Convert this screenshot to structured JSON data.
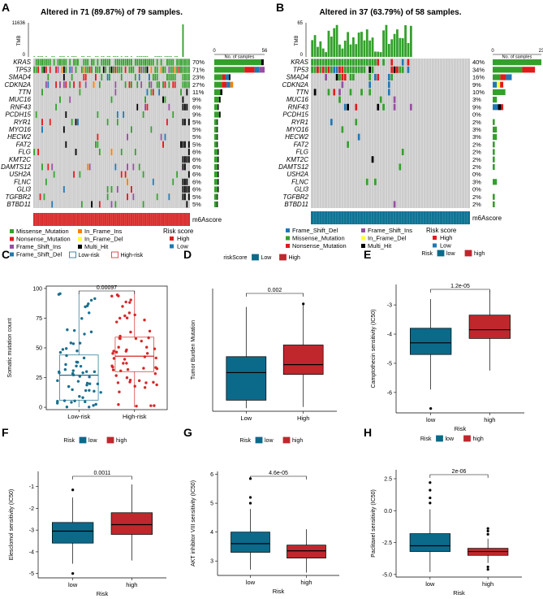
{
  "panels": {
    "A": {
      "letter": "A",
      "title": "Altered in 71 (89.87%) of 79 samples.",
      "tmb_label": "TMB",
      "tmb_max": "11636",
      "tmb_min": "0",
      "samples_label": "No. of samples",
      "samples_ticks": [
        "0",
        "56"
      ],
      "genes": [
        "KRAS",
        "TP53",
        "SMAD4",
        "CDKN2A",
        "TTN",
        "MUC16",
        "RNF43",
        "PCDH15",
        "RYR1",
        "MYO16",
        "HECW2",
        "FAT2",
        "FLG",
        "KMT2C",
        "DAMTS12",
        "USH2A",
        "FLNC",
        "GLI3",
        "TGFBR2",
        "BTBD11"
      ],
      "percents": [
        "70%",
        "71%",
        "23%",
        "27%",
        "11%",
        "9%",
        "6%",
        "9%",
        "5%",
        "5%",
        "5%",
        "5%",
        "6%",
        "6%",
        "6%",
        "6%",
        "6%",
        "6%",
        "5%",
        "5%"
      ],
      "counts": [
        55,
        56,
        18,
        21,
        9,
        7,
        5,
        7,
        4,
        4,
        4,
        4,
        5,
        5,
        5,
        5,
        5,
        5,
        4,
        4
      ],
      "track_label": "m6Ascore",
      "legend": [
        {
          "label": "Missense_Mutation",
          "color": "#33a02c"
        },
        {
          "label": "Nonsense_Mutation",
          "color": "#e31a1c"
        },
        {
          "label": "Frame_Shift_Ins",
          "color": "#984ea3"
        },
        {
          "label": "Frame_Shift_Del",
          "color": "#1f78b4"
        },
        {
          "label": "In_Frame_Ins",
          "color": "#ff7f00"
        },
        {
          "label": "In_Frame_Del",
          "color": "#ffff33"
        },
        {
          "label": "Multi_Hit",
          "color": "#000000"
        }
      ],
      "risk_title": "Risk score",
      "risk_items": [
        {
          "label": "High",
          "color": "#e31a1c"
        },
        {
          "label": "Low",
          "color": "#1f78b4"
        }
      ]
    },
    "B": {
      "letter": "B",
      "title": "Altered in 37 (63.79%) of 58 samples.",
      "tmb_label": "TMB",
      "tmb_max": "65",
      "tmb_min": "0",
      "samples_label": "No. of samples",
      "samples_ticks": [
        "0",
        "23"
      ],
      "genes": [
        "KRAS",
        "TP53",
        "SMAD4",
        "CDKN2A",
        "TTN",
        "MUC16",
        "RNF43",
        "PCDH15",
        "RYR1",
        "MYO16",
        "HECW2",
        "FAT2",
        "FLG",
        "KMT2C",
        "DAMTS12",
        "USH2A",
        "FLNC",
        "GLI3",
        "TGFBR2",
        "BTBD11"
      ],
      "percents": [
        "40%",
        "34%",
        "16%",
        "9%",
        "10%",
        "3%",
        "9%",
        "0%",
        "2%",
        "3%",
        "3%",
        "2%",
        "2%",
        "2%",
        "2%",
        "0%",
        "3%",
        "0%",
        "2%",
        "2%"
      ],
      "counts": [
        23,
        20,
        9,
        5,
        6,
        2,
        5,
        0,
        1,
        2,
        2,
        1,
        1,
        1,
        1,
        0,
        2,
        0,
        1,
        1
      ],
      "track_label": "m6Ascore",
      "legend": [
        {
          "label": "Frame_Shift_Del",
          "color": "#1f78b4"
        },
        {
          "label": "Missense_Mutation",
          "color": "#33a02c"
        },
        {
          "label": "Nonsense_Mutation",
          "color": "#e31a1c"
        },
        {
          "label": "Frame_Shift_Ins",
          "color": "#984ea3"
        },
        {
          "label": "In_Frame_Del",
          "color": "#ffff33"
        },
        {
          "label": "Multi_Hit",
          "color": "#000000"
        }
      ],
      "risk_title": "Risk score",
      "risk_items": [
        {
          "label": "High",
          "color": "#e31a1c"
        },
        {
          "label": "Low",
          "color": "#1f78b4"
        }
      ]
    }
  },
  "chart_data": [
    {
      "id": "C",
      "type": "box",
      "letter": "C",
      "legend_title": "",
      "legend_labels": [
        "Low-risk",
        "High-risk"
      ],
      "ylabel": "Somatic mutation count",
      "xlabel": "",
      "ylim": [
        -2,
        102
      ],
      "yticks": [
        "0",
        "25",
        "50",
        "75",
        "100"
      ],
      "ytick_values": [
        0,
        25,
        50,
        75,
        100
      ],
      "groups": [
        {
          "name": "Low-risk",
          "color": "#1a6f8f",
          "fill": "none",
          "stats": [
            0,
            6,
            27,
            44,
            96
          ],
          "outliers": []
        },
        {
          "name": "High-risk",
          "color": "#d62728",
          "fill": "none",
          "stats": [
            0,
            30,
            43,
            59,
            98
          ],
          "outliers": []
        }
      ],
      "pvalue": "0.00097",
      "jitter": true
    },
    {
      "id": "D",
      "type": "box",
      "letter": "D",
      "legend_title": "riskScore",
      "legend_labels": [
        "Low",
        "High"
      ],
      "ylabel": "Tumor Burden Mutation",
      "xlabel": "",
      "ylim": [
        -0.05,
        1.95
      ],
      "yticks": [],
      "ytick_values": [],
      "groups": [
        {
          "name": "Low",
          "color": "#0b6a8a",
          "fill": "#0b6a8a",
          "stats": [
            0.0,
            0.13,
            0.58,
            0.84,
            1.65
          ],
          "outliers": []
        },
        {
          "name": "High",
          "color": "#c0272d",
          "fill": "#c0272d",
          "stats": [
            0.02,
            0.55,
            0.71,
            1.03,
            1.7
          ],
          "outliers": [
            1.7
          ]
        }
      ],
      "pvalue": "0.002"
    },
    {
      "id": "E",
      "type": "box",
      "letter": "E",
      "legend_title": "Risk",
      "legend_labels": [
        "low",
        "high"
      ],
      "ylabel": "Camptothecin sensitivity (IC50)",
      "xlabel": "Risk",
      "ylim": [
        -6.7,
        -2.3
      ],
      "yticks": [
        "-6",
        "-5",
        "-4",
        "-3"
      ],
      "ytick_values": [
        -6,
        -5,
        -4,
        -3
      ],
      "groups": [
        {
          "name": "low",
          "color": "#0b6a8a",
          "fill": "#0b6a8a",
          "stats": [
            -5.9,
            -4.7,
            -4.3,
            -3.8,
            -2.8
          ],
          "outliers": [
            -6.55
          ]
        },
        {
          "name": "high",
          "color": "#c0272d",
          "fill": "#c0272d",
          "stats": [
            -5.25,
            -4.15,
            -3.85,
            -3.35,
            -2.5
          ],
          "outliers": []
        }
      ],
      "pvalue": "1.2e-05"
    },
    {
      "id": "F",
      "type": "box",
      "letter": "F",
      "legend_title": "Risk",
      "legend_labels": [
        "low",
        "high"
      ],
      "ylabel": "Elesclomol sensitivity (IC50)",
      "xlabel": "Risk",
      "ylim": [
        -5.2,
        -0.3
      ],
      "yticks": [
        "-5",
        "-4",
        "-3",
        "-2",
        "-1"
      ],
      "ytick_values": [
        -5,
        -4,
        -3,
        -2,
        -1
      ],
      "groups": [
        {
          "name": "low",
          "color": "#0b6a8a",
          "fill": "#0b6a8a",
          "stats": [
            -4.55,
            -3.6,
            -3.05,
            -2.65,
            -1.5
          ],
          "outliers": [
            -1.15,
            -5.0
          ]
        },
        {
          "name": "high",
          "color": "#c0272d",
          "fill": "#c0272d",
          "stats": [
            -4.4,
            -3.2,
            -2.75,
            -2.2,
            -0.9
          ],
          "outliers": []
        }
      ],
      "pvalue": "0.0011"
    },
    {
      "id": "G",
      "type": "box",
      "letter": "G",
      "legend_title": "Risk",
      "legend_labels": [
        "low",
        "high"
      ],
      "ylabel": "AKT inhibitor VIII sensitivity (IC50)",
      "xlabel": "Risk",
      "ylim": [
        2.5,
        6.1
      ],
      "yticks": [
        "3",
        "4",
        "5",
        "6"
      ],
      "ytick_values": [
        3,
        4,
        5,
        6
      ],
      "groups": [
        {
          "name": "low",
          "color": "#0b6a8a",
          "fill": "#0b6a8a",
          "stats": [
            2.7,
            3.3,
            3.6,
            4.0,
            4.8
          ],
          "outliers": [
            5.0,
            5.2,
            5.85
          ]
        },
        {
          "name": "high",
          "color": "#c0272d",
          "fill": "#c0272d",
          "stats": [
            2.6,
            3.1,
            3.35,
            3.55,
            4.1
          ],
          "outliers": []
        }
      ],
      "pvalue": "4.6e-05"
    },
    {
      "id": "H",
      "type": "box",
      "letter": "H",
      "legend_title": "Risk",
      "legend_labels": [
        "low",
        "high"
      ],
      "ylabel": "Paclitaxel sensitivity (IC50)",
      "xlabel": "Risk",
      "ylim": [
        -5.2,
        3.2
      ],
      "yticks": [
        "-5.0",
        "-2.5",
        "0.0",
        "2.5"
      ],
      "ytick_values": [
        -5.0,
        -2.5,
        0.0,
        2.5
      ],
      "groups": [
        {
          "name": "low",
          "color": "#0b6a8a",
          "fill": "#0b6a8a",
          "stats": [
            -4.8,
            -3.2,
            -2.75,
            -1.8,
            0.1
          ],
          "outliers": [
            0.6,
            1.0,
            1.6,
            2.2
          ]
        },
        {
          "name": "high",
          "color": "#c0272d",
          "fill": "#c0272d",
          "stats": [
            -4.1,
            -3.5,
            -3.2,
            -2.95,
            -2.2
          ],
          "outliers": [
            -1.4,
            -1.6,
            -1.85,
            -4.4,
            -4.6
          ]
        }
      ],
      "pvalue": "2e-06"
    }
  ]
}
